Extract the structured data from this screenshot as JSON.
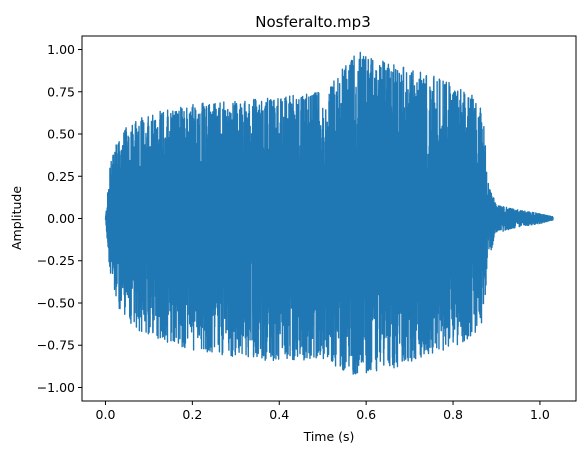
{
  "chart_data": {
    "type": "line",
    "title": "Nosferalto.mp3",
    "xlabel": "Time (s)",
    "ylabel": "Amplitude",
    "xlim": [
      -0.054,
      1.083
    ],
    "ylim": [
      -1.08,
      1.08
    ],
    "xticks": [
      0.0,
      0.2,
      0.4,
      0.6,
      0.8,
      1.0
    ],
    "xtick_labels": [
      "0.0",
      "0.2",
      "0.4",
      "0.6",
      "0.8",
      "1.0"
    ],
    "yticks": [
      -1.0,
      -0.75,
      -0.5,
      -0.25,
      0.0,
      0.25,
      0.5,
      0.75,
      1.0
    ],
    "ytick_labels": [
      "−1.00",
      "−0.75",
      "−0.50",
      "−0.25",
      "0.00",
      "0.25",
      "0.50",
      "0.75",
      "1.00"
    ],
    "grid": false,
    "series": [
      {
        "color": "#1f77b4",
        "duration_s": 1.03,
        "envelope": {
          "t": [
            0.0,
            0.01,
            0.02,
            0.05,
            0.1,
            0.2,
            0.3,
            0.4,
            0.5,
            0.58,
            0.65,
            0.75,
            0.8,
            0.85,
            0.87,
            0.88,
            0.9,
            0.95,
            1.0,
            1.03
          ],
          "pos": [
            0.0,
            0.3,
            0.42,
            0.55,
            0.62,
            0.68,
            0.7,
            0.72,
            0.75,
            0.99,
            0.92,
            0.85,
            0.8,
            0.72,
            0.62,
            0.22,
            0.08,
            0.05,
            0.03,
            0.01
          ],
          "neg": [
            0.0,
            -0.32,
            -0.48,
            -0.62,
            -0.7,
            -0.78,
            -0.82,
            -0.85,
            -0.83,
            -0.95,
            -0.9,
            -0.8,
            -0.78,
            -0.68,
            -0.6,
            -0.25,
            -0.09,
            -0.05,
            -0.03,
            -0.01
          ]
        }
      }
    ]
  }
}
